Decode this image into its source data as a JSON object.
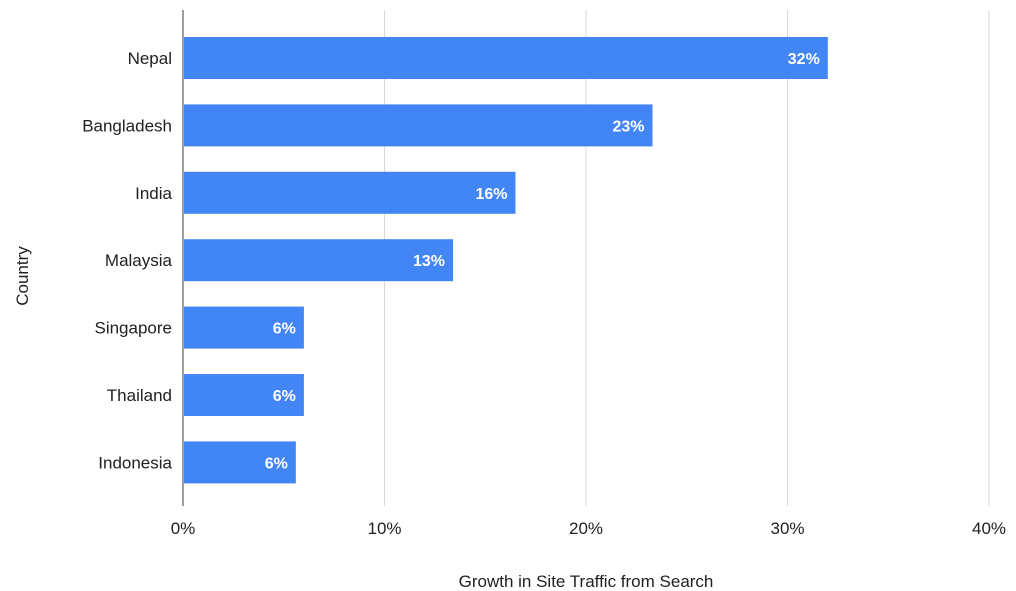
{
  "chart_data": {
    "type": "bar",
    "orientation": "horizontal",
    "categories": [
      "Nepal",
      "Bangladesh",
      "India",
      "Malaysia",
      "Singapore",
      "Thailand",
      "Indonesia"
    ],
    "values": [
      32,
      23.3,
      16.5,
      13.4,
      6,
      6,
      5.6
    ],
    "data_labels": [
      "32%",
      "23%",
      "16%",
      "13%",
      "6%",
      "6%",
      "6%"
    ],
    "xlabel": "Growth in Site Traffic from Search",
    "ylabel": "Country",
    "xlim": [
      0,
      40
    ],
    "x_ticks": [
      0,
      10,
      20,
      30,
      40
    ],
    "x_tick_labels": [
      "0%",
      "10%",
      "20%",
      "30%",
      "40%"
    ],
    "grid": "vertical",
    "legend": "none",
    "bar_color": "#4285f4"
  }
}
